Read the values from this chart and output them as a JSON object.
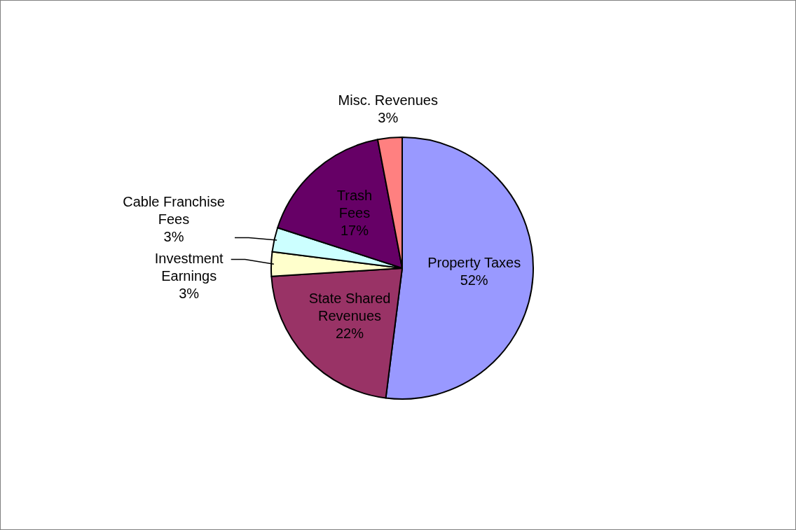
{
  "chart_data": {
    "type": "pie",
    "categories": [
      "Property Taxes",
      "State Shared Revenues",
      "Investment Earnings",
      "Cable Franchise Fees",
      "Trash Fees",
      "Misc. Revenues"
    ],
    "values": [
      52,
      22,
      3,
      3,
      17,
      3
    ],
    "colors": [
      "#9999ff",
      "#993366",
      "#ffffcc",
      "#ccffff",
      "#660066",
      "#ff8080"
    ],
    "value_labels": [
      "52%",
      "22%",
      "3%",
      "3%",
      "17%",
      "3%"
    ]
  }
}
